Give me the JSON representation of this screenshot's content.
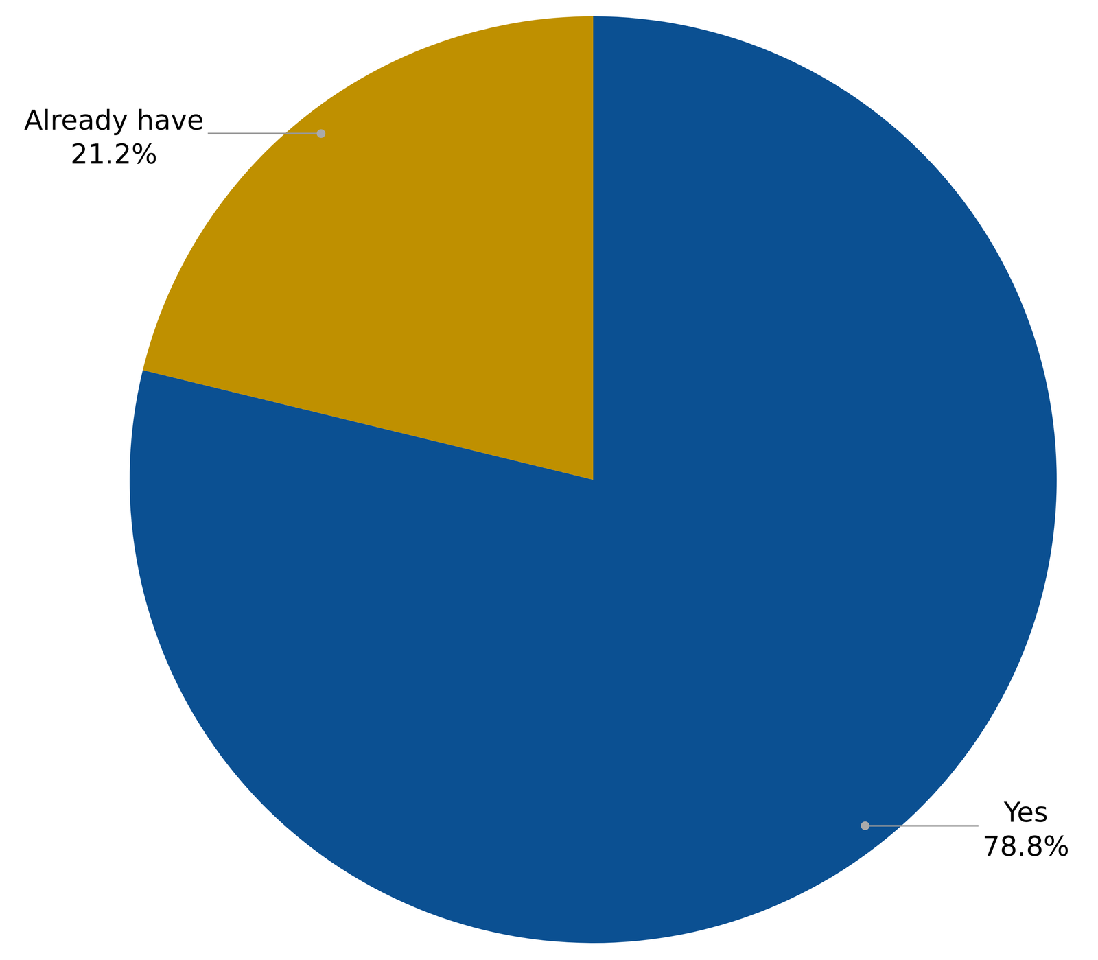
{
  "chart_data": {
    "type": "pie",
    "categories": [
      "Yes",
      "Already have"
    ],
    "values": [
      78.8,
      21.2
    ],
    "value_labels": [
      "78.8%",
      "21.2%"
    ],
    "colors": [
      "#0B5092",
      "#BF9000"
    ],
    "data_labels": true
  }
}
